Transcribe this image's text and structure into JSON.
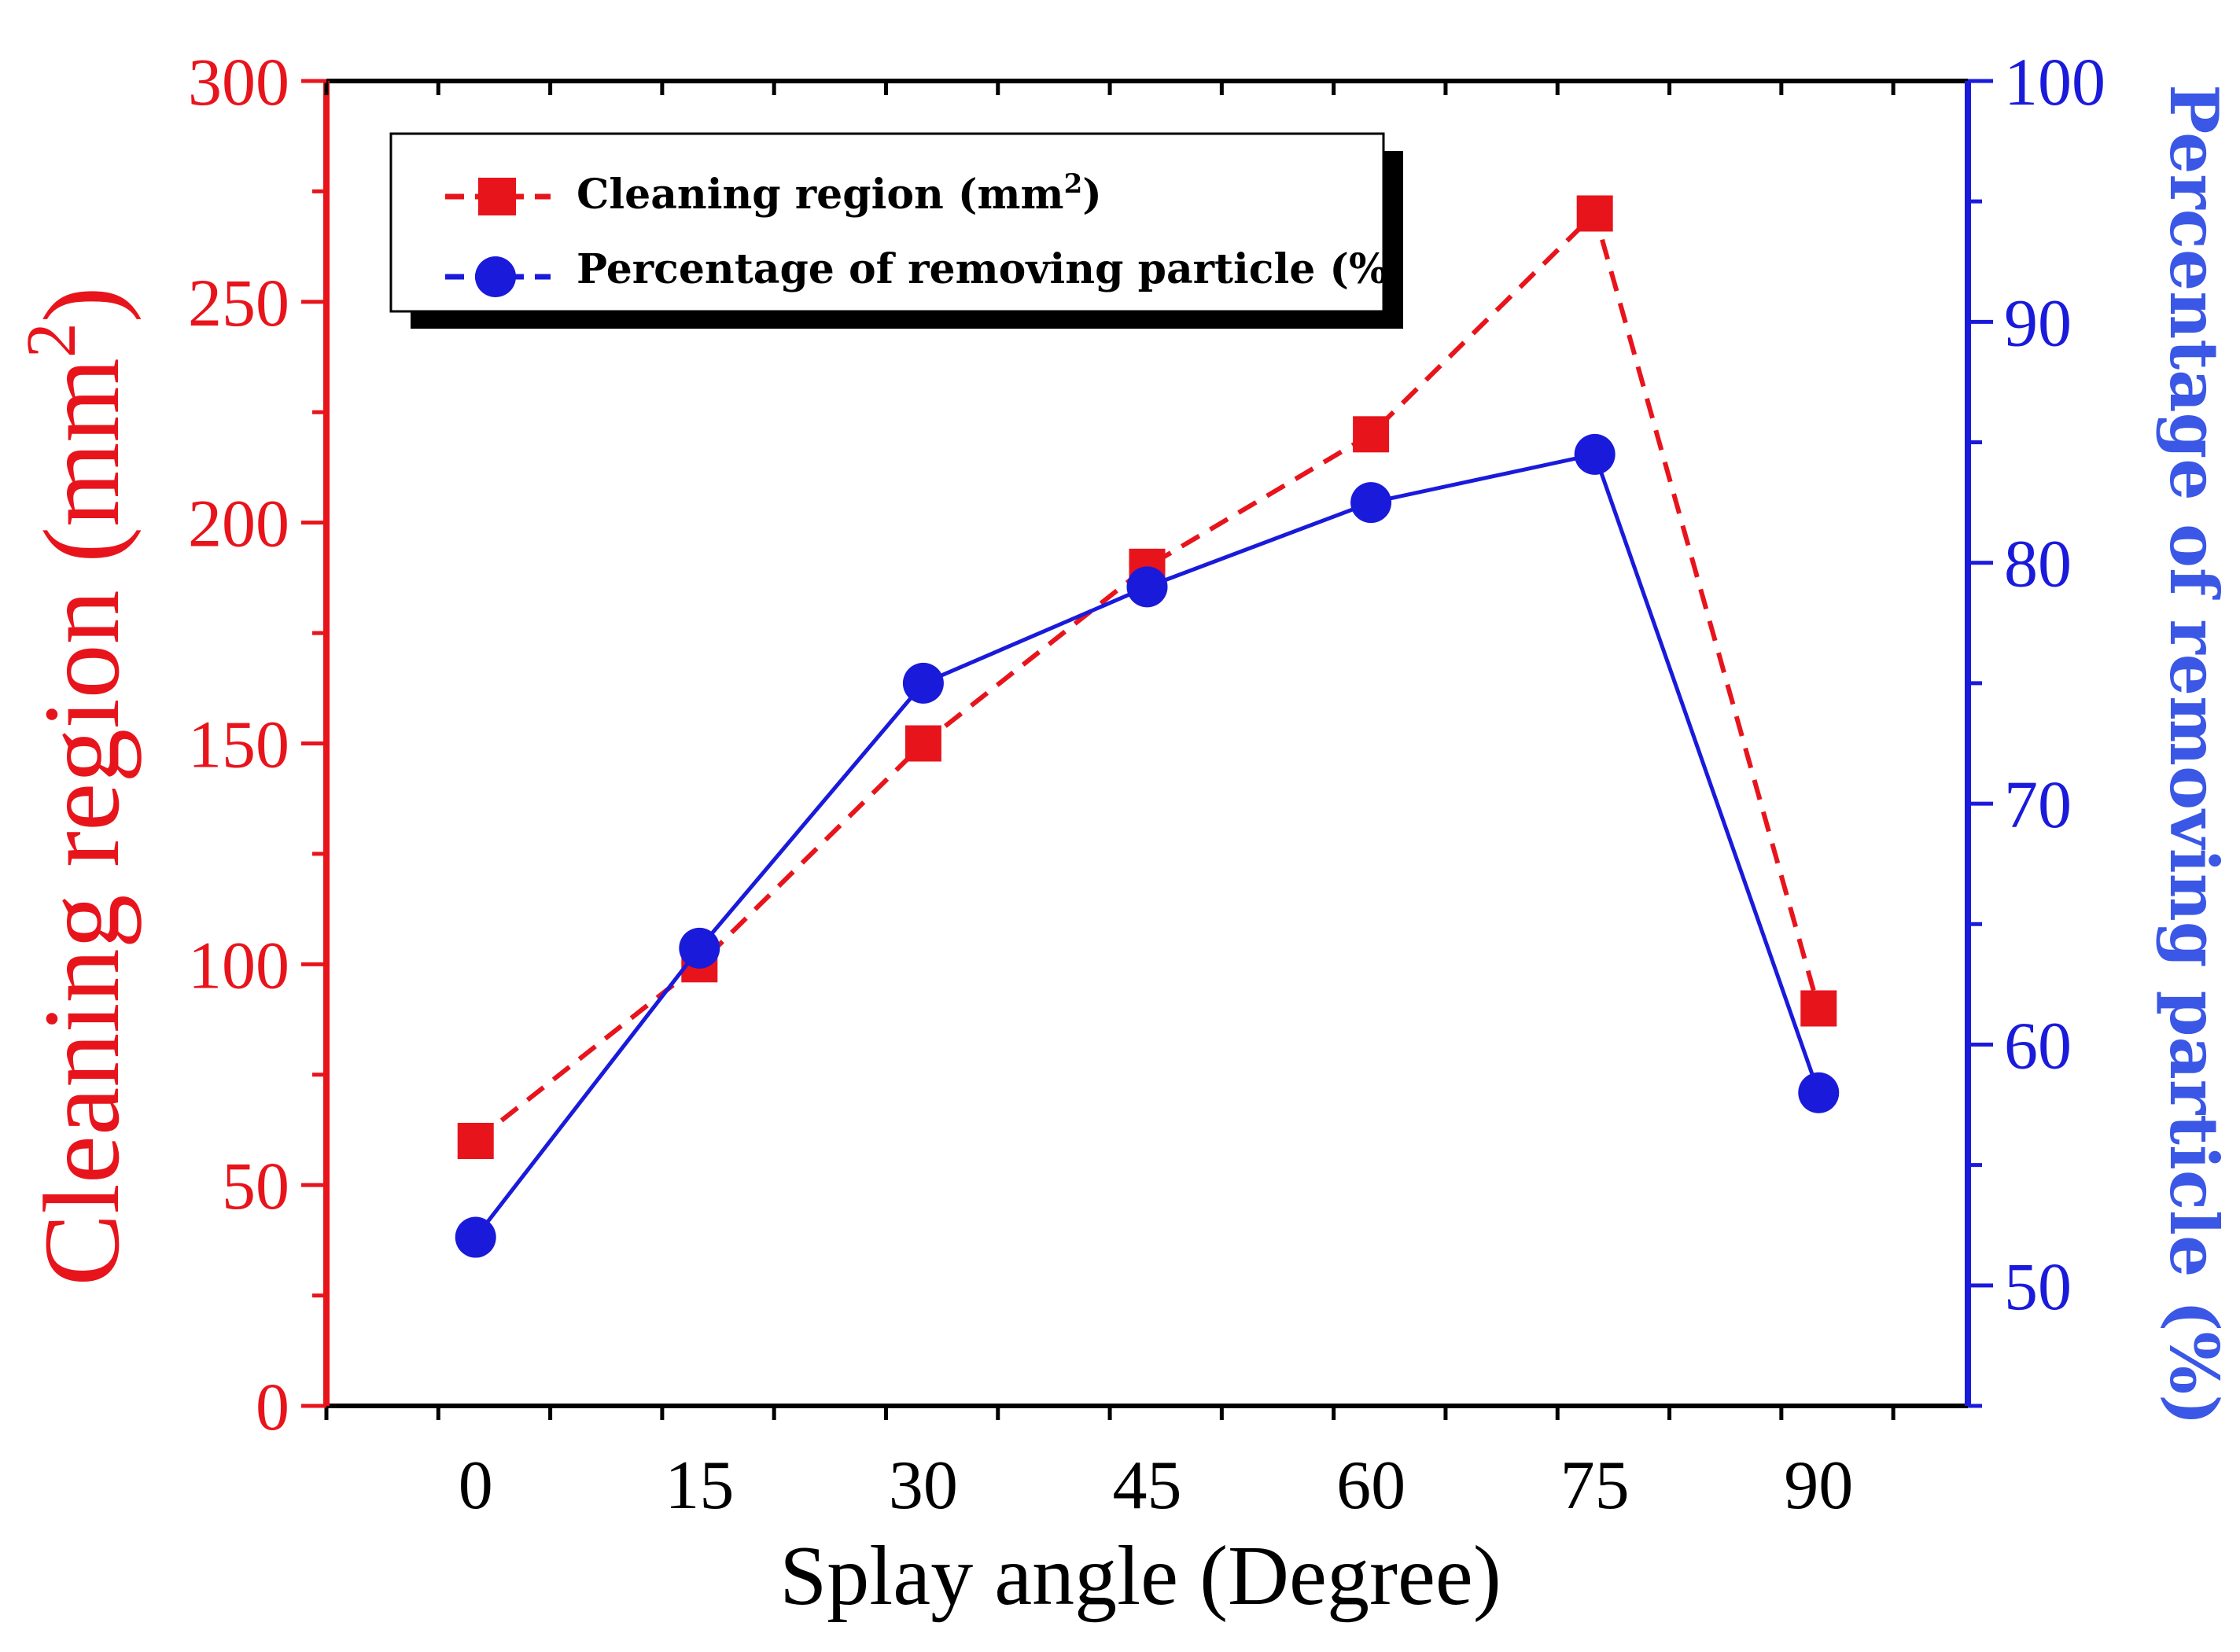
{
  "chart_data": {
    "type": "line",
    "x": [
      0,
      15,
      30,
      45,
      60,
      75,
      90
    ],
    "xlabel": "Splay angle (Degree)",
    "xlim": [
      -10,
      100
    ],
    "xticks": [
      "0",
      "15",
      "30",
      "45",
      "60",
      "75",
      "90"
    ],
    "ylabel_left": {
      "main": "Cleaning region (mm",
      "sup": "2",
      "close": ")"
    },
    "ylim_left": [
      0,
      300
    ],
    "yticks_left": [
      "0",
      "50",
      "100",
      "150",
      "200",
      "250",
      "300"
    ],
    "ylabel_right": "Percentage of removing particle (%)",
    "ylim_right": [
      45,
      100
    ],
    "yticks_right": [
      "50",
      "60",
      "70",
      "80",
      "90",
      "100"
    ],
    "series": [
      {
        "name": "Cleaning region (mm",
        "name_sup": "2",
        "name_close": ")",
        "axis": "left",
        "marker": "square",
        "line_style": "dashed",
        "color": "#e8141c",
        "values": [
          60,
          100,
          150,
          190,
          220,
          270,
          90
        ]
      },
      {
        "name": "Percentage of removing particle (%)",
        "axis": "right",
        "marker": "circle",
        "line_style": "solid",
        "color": "#1a1adb",
        "values": [
          52,
          64,
          75,
          79,
          82.5,
          84.5,
          58
        ]
      }
    ],
    "legend": "top-left",
    "grid": false,
    "colors": {
      "left_axis": "#e8141c",
      "right_axis": "#1a1adb",
      "axis_title_right": "#3a57e6"
    }
  }
}
